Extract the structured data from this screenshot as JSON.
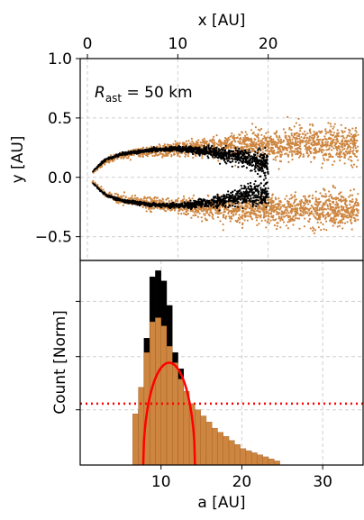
{
  "chart_data": [
    {
      "type": "scatter",
      "panel": "top",
      "xlabel": "x [AU]",
      "ylabel": "y [AU]",
      "xaxis_position": "top",
      "xlim": [
        -0.8,
        30.5
      ],
      "ylim": [
        -0.7,
        1.0
      ],
      "xticks": [
        0,
        10,
        20
      ],
      "xtick_labels": [
        "0",
        "10",
        "20"
      ],
      "yticks": [
        -0.5,
        0.0,
        0.5,
        1.0
      ],
      "ytick_labels": [
        "−0.5",
        "0.0",
        "0.5",
        "1.0"
      ],
      "grid": true,
      "annotation": {
        "prefix": "R",
        "subscript": "ast",
        "suffix": " = 50 km"
      },
      "series": [
        {
          "color": "#cd853f",
          "description_shape": "horseshoe opening toward +x, vertex near x=0.5",
          "upper_arm": [
            [
              0.5,
              0.03
            ],
            [
              2,
              0.14
            ],
            [
              4,
              0.19
            ],
            [
              7,
              0.22
            ],
            [
              10,
              0.24
            ],
            [
              14,
              0.26
            ],
            [
              18,
              0.27
            ],
            [
              22,
              0.27
            ],
            [
              26,
              0.27
            ],
            [
              30,
              0.27
            ]
          ],
          "lower_arm": [
            [
              0.5,
              -0.03
            ],
            [
              2,
              -0.14
            ],
            [
              4,
              -0.19
            ],
            [
              7,
              -0.22
            ],
            [
              10,
              -0.24
            ],
            [
              14,
              -0.26
            ],
            [
              18,
              -0.27
            ],
            [
              22,
              -0.27
            ],
            [
              26,
              -0.27
            ],
            [
              30,
              -0.27
            ]
          ],
          "spread": [
            0.01,
            0.02,
            0.03,
            0.04,
            0.05,
            0.07,
            0.09,
            0.11,
            0.12,
            0.13
          ],
          "x_range": [
            0.5,
            30
          ],
          "count": 3200
        },
        {
          "color": "#000000",
          "upper_arm": [
            [
              0.6,
              0.05
            ],
            [
              2,
              0.15
            ],
            [
              4,
              0.2
            ],
            [
              7,
              0.23
            ],
            [
              10,
              0.24
            ],
            [
              13,
              0.22
            ],
            [
              16,
              0.18
            ],
            [
              18,
              0.14
            ],
            [
              20,
              0.12
            ]
          ],
          "lower_arm": [
            [
              0.6,
              -0.05
            ],
            [
              2,
              -0.15
            ],
            [
              4,
              -0.2
            ],
            [
              7,
              -0.23
            ],
            [
              10,
              -0.24
            ],
            [
              13,
              -0.22
            ],
            [
              16,
              -0.18
            ],
            [
              18,
              -0.14
            ],
            [
              20,
              -0.12
            ]
          ],
          "spread": [
            0.005,
            0.008,
            0.01,
            0.012,
            0.015,
            0.03,
            0.05,
            0.07,
            0.09
          ],
          "x_range": [
            0.6,
            20
          ],
          "count": 2200
        }
      ]
    },
    {
      "type": "bar",
      "panel": "bottom",
      "xlabel": "a [AU]",
      "ylabel": "Count [Norm]",
      "xlim": [
        0,
        35
      ],
      "ylim": [
        0,
        1.0
      ],
      "xticks": [
        10,
        20,
        30
      ],
      "xtick_labels": [
        "10",
        "20",
        "30"
      ],
      "yticks": [
        0.27,
        0.53,
        0.8
      ],
      "ytick_labels": [],
      "grid": true,
      "bin_edges_start": 6.5,
      "bin_width": 0.7,
      "series": [
        {
          "color": "#000000",
          "values": [
            0.0,
            0.27,
            0.62,
            0.92,
            0.95,
            0.9,
            0.78,
            0.55,
            0.47,
            0.28,
            0.18,
            0.1,
            0.05,
            0.02
          ]
        },
        {
          "color": "#cd853f",
          "values": [
            0.25,
            0.38,
            0.55,
            0.7,
            0.72,
            0.68,
            0.58,
            0.5,
            0.42,
            0.36,
            0.3,
            0.27,
            0.24,
            0.21,
            0.18,
            0.16,
            0.14,
            0.12,
            0.1,
            0.08,
            0.07,
            0.06,
            0.05,
            0.04,
            0.03,
            0.02
          ]
        }
      ],
      "curve": {
        "color": "#ff0000",
        "shape": "semicircle",
        "x_range": [
          7.8,
          14.2
        ],
        "peak": 0.5,
        "peak_x": 10
      },
      "hline": {
        "color": "#ff0000",
        "style": "dotted",
        "y": 0.3
      }
    }
  ]
}
